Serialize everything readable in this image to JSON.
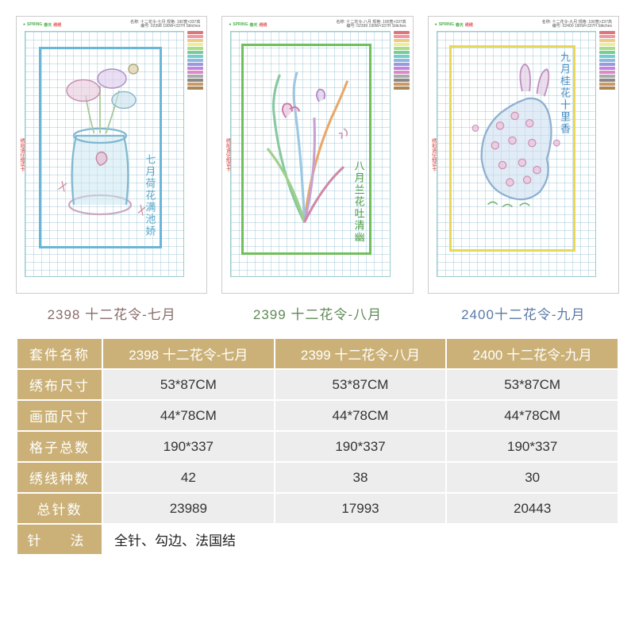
{
  "captions": {
    "c1_color": "#8a6b6b",
    "c2_color": "#5e8a56",
    "c3_color": "#5a7aa8",
    "c1": "2398 十二花令-七月",
    "c2": "2399 十二花令-八月",
    "c3": "2400十二花令-九月"
  },
  "sheet_header": {
    "brand_en": "SPRING",
    "brand_cn": "春天",
    "sub": "绣绣",
    "info1": "名称: 十二花令-七月  规格: 190宽×337高",
    "info1b": "编号: 02398      190W×337H Stitches",
    "info2": "名称: 十二花令-八月  规格: 190宽×337高",
    "info2b": "编号: 02399      190W×337H Stitches",
    "info3": "名称: 十二花令-九月  规格: 190宽×337高",
    "info3b": "编号: 02400      190W×337H Stitches"
  },
  "side_note": "绣前请仔细读卡",
  "frame_colors": {
    "f1": "#6bb6d6",
    "f2": "#6fbf5a",
    "f3": "#e8d85a"
  },
  "vtext": {
    "t1": "七月荷花满池娇",
    "t2": "八月兰花吐清幽",
    "t3": "九月桂花十里香",
    "t1_color": "#5aa7c7",
    "t2_color": "#4a9a3e",
    "t3_color": "#4a8fc7"
  },
  "legend_colors": [
    "#d77",
    "#e9a",
    "#ec8",
    "#ee9",
    "#ad8",
    "#7c9",
    "#7cc",
    "#8bd",
    "#99d",
    "#b8d",
    "#d8c",
    "#aaa",
    "#888",
    "#c96",
    "#a85"
  ],
  "table": {
    "header_bg": "#cbb177",
    "cell_bg": "#ededed",
    "rows": [
      {
        "label": "套件名称",
        "vals": [
          "2398 十二花令-七月",
          "2399 十二花令-八月",
          "2400 十二花令-九月"
        ],
        "is_header": true
      },
      {
        "label": "绣布尺寸",
        "vals": [
          "53*87CM",
          "53*87CM",
          "53*87CM"
        ]
      },
      {
        "label": "画面尺寸",
        "vals": [
          "44*78CM",
          "44*78CM",
          "44*78CM"
        ]
      },
      {
        "label": "格子总数",
        "vals": [
          "190*337",
          "190*337",
          "190*337"
        ]
      },
      {
        "label": "绣线种数",
        "vals": [
          "42",
          "38",
          "30"
        ]
      },
      {
        "label": "总针数",
        "vals": [
          "23989",
          "17993",
          "20443"
        ]
      }
    ],
    "method_label": "针　法",
    "method_value": "全针、勾边、法国结"
  }
}
